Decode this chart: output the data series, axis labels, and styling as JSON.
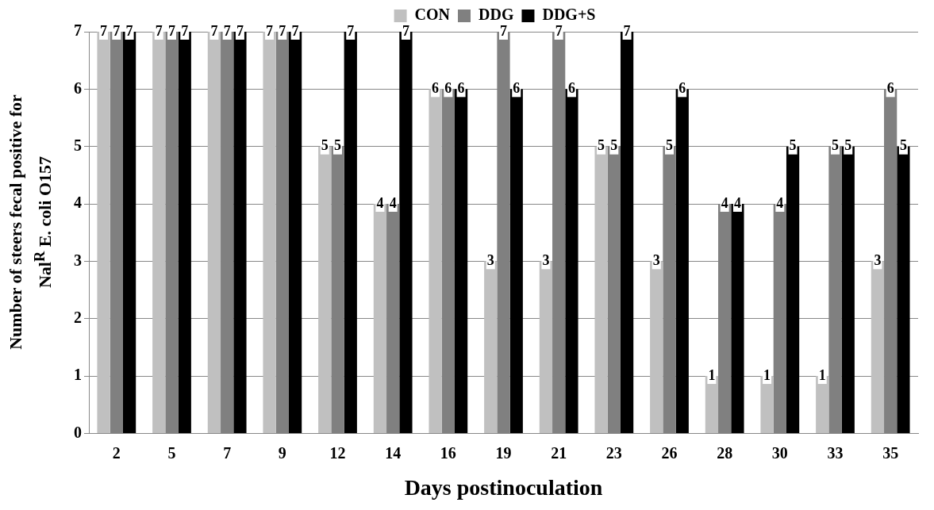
{
  "chart_data": {
    "type": "bar",
    "xlabel": "Days postinoculation",
    "ylabel": "Number  of steers fecal positive for Nal$^{R}$ E. coli O157",
    "categories": [
      "2",
      "5",
      "7",
      "9",
      "12",
      "14",
      "16",
      "19",
      "21",
      "23",
      "26",
      "28",
      "30",
      "33",
      "35"
    ],
    "series": [
      {
        "name": "CON",
        "color": "#c0c0c0",
        "values": [
          7,
          7,
          7,
          7,
          5,
          4,
          6,
          3,
          3,
          5,
          3,
          1,
          1,
          1,
          3
        ]
      },
      {
        "name": "DDG",
        "color": "#808080",
        "values": [
          7,
          7,
          7,
          7,
          5,
          4,
          6,
          7,
          7,
          5,
          5,
          4,
          4,
          5,
          6
        ]
      },
      {
        "name": "DDG+S",
        "color": "#000000",
        "values": [
          7,
          7,
          7,
          7,
          7,
          7,
          6,
          6,
          6,
          7,
          6,
          4,
          5,
          5,
          5
        ]
      }
    ],
    "ylim": [
      0,
      7
    ],
    "yticks": [
      0,
      1,
      2,
      3,
      4,
      5,
      6,
      7
    ],
    "grid": "y",
    "legend": "top",
    "data_labels": true
  }
}
